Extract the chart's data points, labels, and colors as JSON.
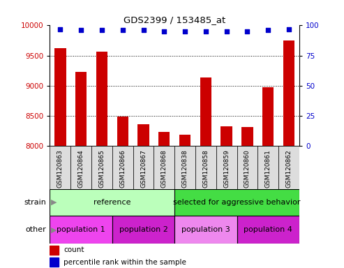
{
  "title": "GDS2399 / 153485_at",
  "samples": [
    "GSM120863",
    "GSM120864",
    "GSM120865",
    "GSM120866",
    "GSM120867",
    "GSM120868",
    "GSM120838",
    "GSM120858",
    "GSM120859",
    "GSM120860",
    "GSM120861",
    "GSM120862"
  ],
  "counts": [
    9620,
    9230,
    9560,
    8490,
    8360,
    8230,
    8190,
    9140,
    8330,
    8310,
    8970,
    9750
  ],
  "percentile_ranks": [
    97,
    96,
    96,
    96,
    96,
    95,
    95,
    95,
    95,
    95,
    96,
    97
  ],
  "ylim_left": [
    8000,
    10000
  ],
  "ylim_right": [
    0,
    100
  ],
  "yticks_left": [
    8000,
    8500,
    9000,
    9500,
    10000
  ],
  "yticks_right": [
    0,
    25,
    50,
    75,
    100
  ],
  "bar_color": "#cc0000",
  "dot_color": "#0000cc",
  "strain_groups": [
    {
      "label": "reference",
      "start": 0,
      "end": 6,
      "color": "#bbffbb"
    },
    {
      "label": "selected for aggressive behavior",
      "start": 6,
      "end": 12,
      "color": "#44dd44"
    }
  ],
  "other_groups": [
    {
      "label": "population 1",
      "start": 0,
      "end": 3,
      "color": "#ee44ee"
    },
    {
      "label": "population 2",
      "start": 3,
      "end": 6,
      "color": "#cc22cc"
    },
    {
      "label": "population 3",
      "start": 6,
      "end": 9,
      "color": "#ee88ee"
    },
    {
      "label": "population 4",
      "start": 9,
      "end": 12,
      "color": "#cc22cc"
    }
  ],
  "strain_label": "strain",
  "other_label": "other",
  "legend_count_label": "count",
  "legend_pct_label": "percentile rank within the sample",
  "axis_label_color_left": "#cc0000",
  "axis_label_color_right": "#0000cc",
  "plot_bg_color": "#ffffff",
  "tick_bg_color": "#dddddd"
}
